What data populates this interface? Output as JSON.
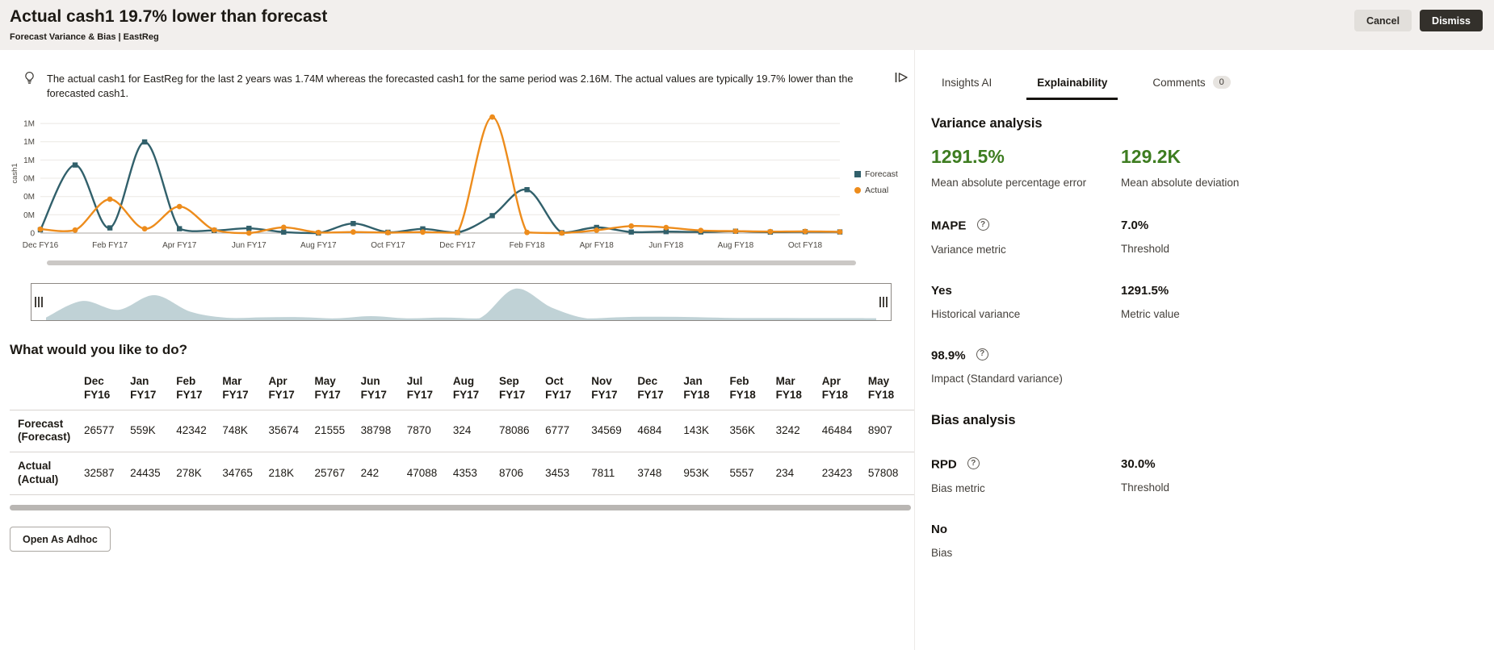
{
  "header": {
    "title": "Actual cash1 19.7% lower than forecast",
    "subtitle": "Forecast Variance & Bias | EastReg",
    "cancel_label": "Cancel",
    "dismiss_label": "Dismiss"
  },
  "insight": {
    "text": "The actual cash1 for EastReg for the last 2 years was 1.74M whereas the forecasted cash1 for the same period was 2.16M. The actual values are typically 19.7% lower than the forecasted cash1."
  },
  "icons": {
    "insight": "lightbulb-icon",
    "run": "present-play-icon",
    "help": "question-mark-icon",
    "range_grip": "vertical-grip-icon"
  },
  "chart_data": {
    "type": "line",
    "title": "",
    "xlabel": "",
    "ylabel": "cash1",
    "x": [
      "Dec FY16",
      "Jan FY17",
      "Feb FY17",
      "Mar FY17",
      "Apr FY17",
      "May FY17",
      "Jun FY17",
      "Jul FY17",
      "Aug FY17",
      "Sep FY17",
      "Oct FY17",
      "Nov FY17",
      "Dec FY17",
      "Jan FY18",
      "Feb FY18",
      "Mar FY18",
      "Apr FY18",
      "May FY18",
      "Jun FY18",
      "Jul FY18",
      "Aug FY18",
      "Sep FY18",
      "Oct FY18",
      "Nov FY18"
    ],
    "x_tick_labels": [
      "Dec FY16",
      "Feb FY17",
      "Apr FY17",
      "Jun FY17",
      "Aug FY17",
      "Oct FY17",
      "Dec FY17",
      "Feb FY18",
      "Apr FY18",
      "Jun FY18",
      "Aug FY18",
      "Oct FY18"
    ],
    "series": [
      {
        "name": "Forecast",
        "marker": "square",
        "color": "#31606b",
        "values": [
          26577,
          559000,
          42342,
          748000,
          35674,
          21555,
          38798,
          7870,
          324,
          78086,
          6777,
          34569,
          4684,
          143000,
          356000,
          3242,
          46484,
          8907,
          12000,
          9000,
          15000,
          8000,
          11000,
          9000
        ]
      },
      {
        "name": "Actual",
        "marker": "circle",
        "color": "#ed8c1c",
        "values": [
          32587,
          24435,
          278000,
          34765,
          218000,
          25767,
          242,
          47088,
          4353,
          8706,
          3453,
          7811,
          3748,
          953000,
          5557,
          234,
          23423,
          57808,
          46000,
          21000,
          16000,
          12000,
          14000,
          10000
        ]
      }
    ],
    "y_ticks": [
      0,
      150000,
      300000,
      450000,
      600000,
      750000,
      900000
    ],
    "y_tick_labels": [
      "0",
      "0M",
      "0M",
      "0M",
      "1M",
      "1M",
      "1M"
    ],
    "ylim": [
      0,
      980000
    ],
    "grid": "horizontal",
    "legend_position": "right"
  },
  "prompt": {
    "heading": "What would you like to do?"
  },
  "table": {
    "columns": [
      "Dec FY16",
      "Jan FY17",
      "Feb FY17",
      "Mar FY17",
      "Apr FY17",
      "May FY17",
      "Jun FY17",
      "Jul FY17",
      "Aug FY17",
      "Sep FY17",
      "Oct FY17",
      "Nov FY17",
      "Dec FY17",
      "Jan FY18",
      "Feb FY18",
      "Mar FY18",
      "Apr FY18",
      "May FY18"
    ],
    "rows": [
      {
        "label": "Forecast (Forecast)",
        "values": [
          "26577",
          "559K",
          "42342",
          "748K",
          "35674",
          "21555",
          "38798",
          "7870",
          "324",
          "78086",
          "6777",
          "34569",
          "4684",
          "143K",
          "356K",
          "3242",
          "46484",
          "8907"
        ]
      },
      {
        "label": "Actual (Actual)",
        "values": [
          "32587",
          "24435",
          "278K",
          "34765",
          "218K",
          "25767",
          "242",
          "47088",
          "4353",
          "8706",
          "3453",
          "7811",
          "3748",
          "953K",
          "5557",
          "234",
          "23423",
          "57808"
        ]
      }
    ]
  },
  "footer": {
    "open_as_adhoc_label": "Open As Adhoc"
  },
  "panel": {
    "tabs": [
      {
        "label": "Insights AI",
        "active": false
      },
      {
        "label": "Explainability",
        "active": true
      },
      {
        "label": "Comments",
        "active": false,
        "badge": "0"
      }
    ],
    "variance": {
      "heading": "Variance analysis",
      "big_left": {
        "value": "1291.5%",
        "label": "Mean absolute percentage error"
      },
      "big_right": {
        "value": "129.2K",
        "label": "Mean absolute deviation"
      },
      "rows": [
        {
          "left_value": "MAPE",
          "left_help": true,
          "left_label": "Variance metric",
          "right_value": "7.0%",
          "right_label": "Threshold"
        },
        {
          "left_value": "Yes",
          "left_label": "Historical variance",
          "right_value": "1291.5%",
          "right_label": "Metric value"
        },
        {
          "left_value": "98.9%",
          "left_help": true,
          "left_label": "Impact (Standard variance)"
        }
      ]
    },
    "bias": {
      "heading": "Bias analysis",
      "rows": [
        {
          "left_value": "RPD",
          "left_help": true,
          "left_label": "Bias metric",
          "right_value": "30.0%",
          "right_label": "Threshold"
        },
        {
          "left_value": "No",
          "left_label": "Bias"
        }
      ]
    }
  },
  "colors": {
    "accent_green": "#3e7d21",
    "forecast": "#31606b",
    "actual": "#ed8c1c",
    "navigator_fill": "#b9cdd2",
    "header_bg": "#f2efed",
    "primary_button_bg": "#33302b"
  }
}
